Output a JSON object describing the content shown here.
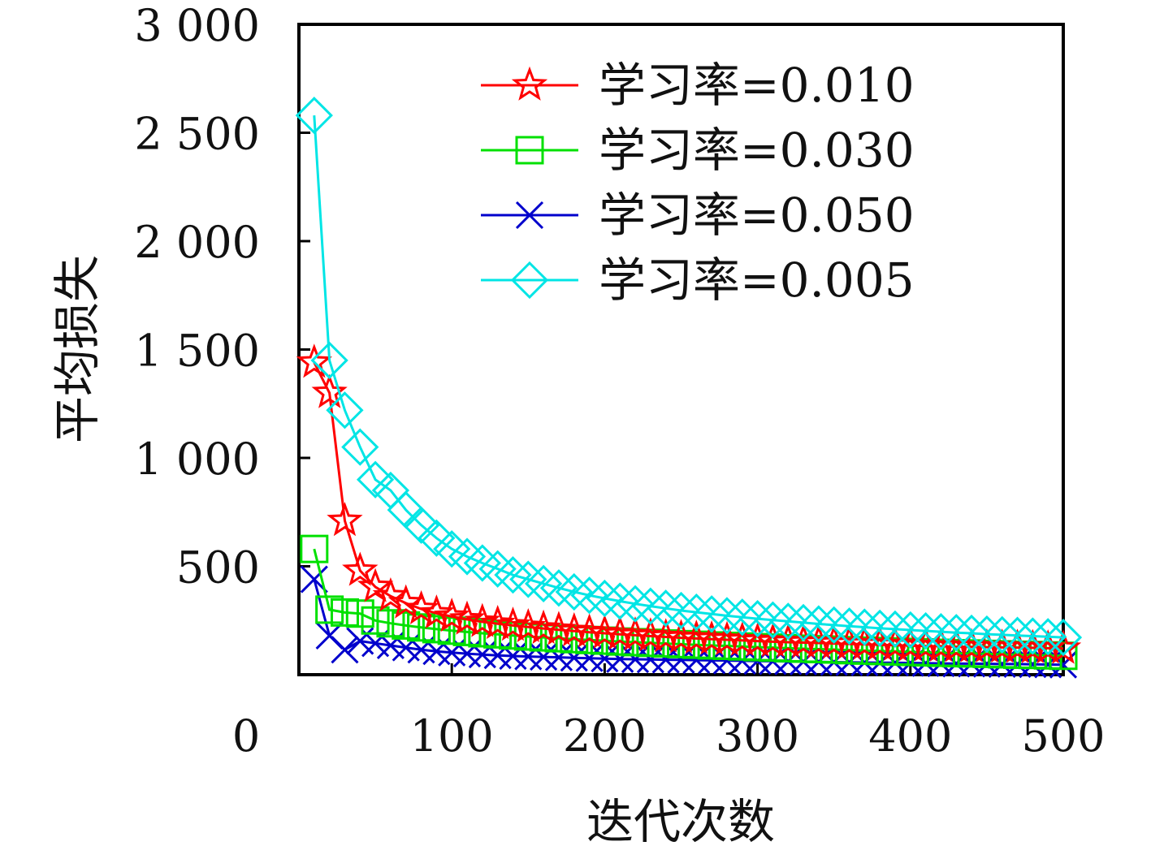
{
  "chart_data": {
    "type": "line",
    "title": "",
    "xlabel": "迭代次数",
    "ylabel": "平均损失",
    "xlim": [
      0,
      500
    ],
    "ylim": [
      0,
      3000
    ],
    "x_ticks": [
      "0",
      "100",
      "200",
      "300",
      "400",
      "500"
    ],
    "y_ticks": [
      "0",
      "500",
      "1 000",
      "1 500",
      "2 000",
      "2 500",
      "3 000"
    ],
    "grid": false,
    "legend_position": "top-right",
    "x": [
      10,
      20,
      30,
      40,
      50,
      60,
      70,
      80,
      90,
      100,
      110,
      120,
      130,
      140,
      150,
      160,
      170,
      180,
      190,
      200,
      210,
      220,
      230,
      240,
      250,
      260,
      270,
      280,
      290,
      300,
      310,
      320,
      330,
      340,
      350,
      360,
      370,
      380,
      390,
      400,
      410,
      420,
      430,
      440,
      450,
      460,
      470,
      480,
      490,
      500
    ],
    "series": [
      {
        "name": "学习率=0.010",
        "color": "#ff0000",
        "marker": "star",
        "values": [
          1440,
          1300,
          710,
          480,
          405,
          362,
          330,
          303,
          283,
          268,
          255,
          244,
          235,
          227,
          220,
          213,
          207,
          201,
          196,
          191,
          186,
          182,
          178,
          174,
          170,
          167,
          164,
          161,
          158,
          155,
          152,
          150,
          148,
          146,
          144,
          142,
          140,
          138,
          136,
          134,
          132,
          131,
          129,
          128,
          127,
          126,
          125,
          124,
          122,
          121
        ]
      },
      {
        "name": "学习率=0.030",
        "color": "#00e000",
        "marker": "square",
        "values": [
          580,
          300,
          287,
          282,
          250,
          237,
          227,
          218,
          210,
          203,
          197,
          191,
          186,
          181,
          176,
          172,
          168,
          164,
          160,
          157,
          153,
          150,
          147,
          144,
          141,
          138,
          135,
          133,
          130,
          127,
          125,
          122,
          120,
          118,
          116,
          113,
          111,
          109,
          107,
          105,
          103,
          101,
          99,
          98,
          96,
          94,
          92,
          91,
          89,
          87
        ]
      },
      {
        "name": "学习率=0.050",
        "color": "#0000cc",
        "marker": "x",
        "values": [
          440,
          180,
          115,
          155,
          145,
          135,
          125,
          115,
          108,
          102,
          97,
          93,
          89,
          86,
          84,
          82,
          80,
          78,
          76,
          74,
          72,
          71,
          70,
          69,
          68,
          67,
          66,
          65,
          64,
          63,
          62,
          61,
          60,
          59,
          58,
          57,
          56,
          55,
          55,
          54,
          53,
          52,
          51,
          51,
          50,
          49,
          49,
          48,
          47,
          46
        ]
      },
      {
        "name": "学习率=0.005",
        "color": "#00e5e5",
        "marker": "diamond",
        "values": [
          2580,
          1450,
          1220,
          1050,
          900,
          850,
          760,
          690,
          630,
          580,
          545,
          515,
          488,
          460,
          440,
          420,
          400,
          382,
          366,
          352,
          339,
          327,
          316,
          306,
          296,
          288,
          280,
          272,
          265,
          258,
          252,
          246,
          240,
          234,
          229,
          224,
          219,
          214,
          210,
          206,
          202,
          198,
          194,
          191,
          187,
          184,
          181,
          178,
          175,
          172
        ]
      }
    ]
  }
}
